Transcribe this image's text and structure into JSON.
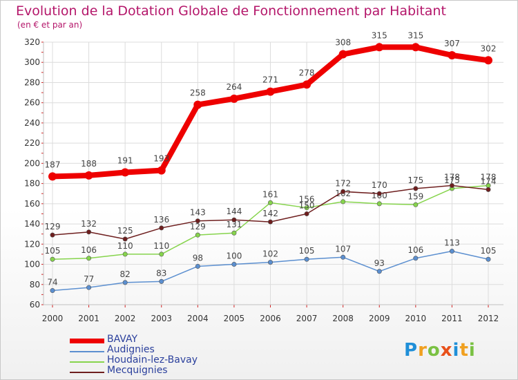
{
  "chart_data": {
    "type": "line",
    "title": "Evolution de la Dotation Globale de Fonctionnement par Habitant",
    "subtitle": "(en € et par an)",
    "xlabel": "",
    "ylabel": "",
    "ylim": [
      60,
      320
    ],
    "yticks": [
      60,
      80,
      100,
      120,
      140,
      160,
      180,
      200,
      220,
      240,
      260,
      280,
      300,
      320
    ],
    "categories": [
      "2000",
      "2001",
      "2002",
      "2003",
      "2004",
      "2005",
      "2006",
      "2007",
      "2008",
      "2009",
      "2010",
      "2011",
      "2012"
    ],
    "grid": true,
    "legend_position": "bottom-left",
    "series": [
      {
        "name": "BAVAY",
        "color": "#ee0000",
        "emphasis": true,
        "values": [
          187,
          188,
          191,
          193,
          258,
          264,
          271,
          278,
          308,
          315,
          315,
          307,
          302
        ]
      },
      {
        "name": "Audignies",
        "color": "#5b8fd0",
        "emphasis": false,
        "values": [
          74,
          77,
          82,
          83,
          98,
          100,
          102,
          105,
          107,
          93,
          106,
          113,
          105
        ]
      },
      {
        "name": "Houdain-lez-Bavay",
        "color": "#86d44c",
        "emphasis": false,
        "values": [
          105,
          106,
          110,
          110,
          129,
          131,
          161,
          156,
          162,
          160,
          159,
          175,
          178
        ]
      },
      {
        "name": "Mecquignies",
        "color": "#6e1e1e",
        "emphasis": false,
        "values": [
          129,
          132,
          125,
          136,
          143,
          144,
          142,
          150,
          172,
          170,
          175,
          178,
          174
        ]
      }
    ]
  },
  "logo": {
    "letters": [
      "P",
      "r",
      "o",
      "x",
      "i",
      "t",
      "i"
    ],
    "colors": [
      "#1f8fd8",
      "#f0a020",
      "#7ac143",
      "#e8501a",
      "#1f8fd8",
      "#f0a020",
      "#7ac143"
    ]
  }
}
